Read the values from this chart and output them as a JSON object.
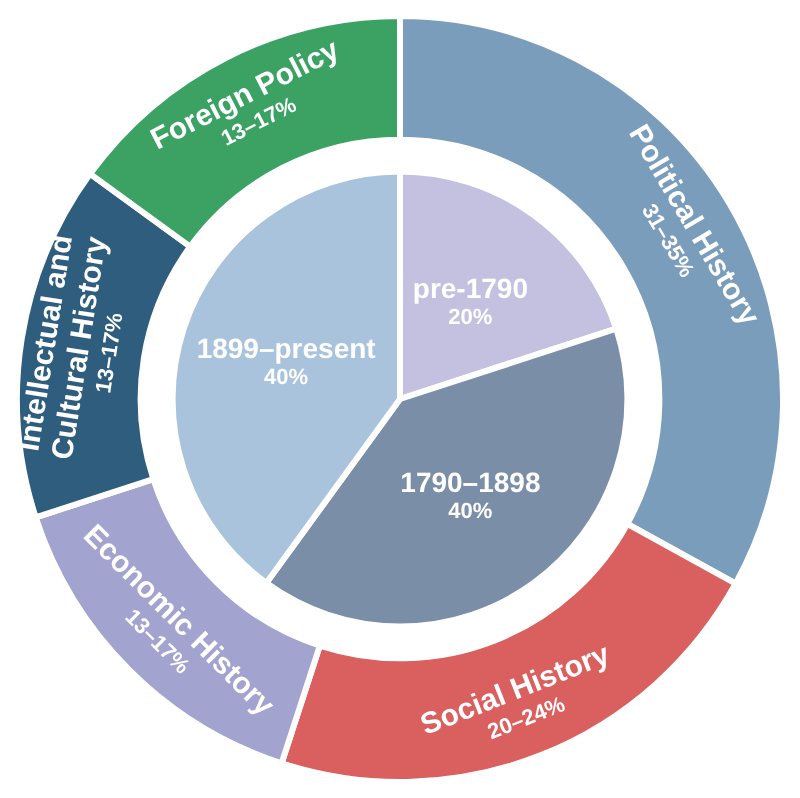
{
  "chart_data": [
    {
      "type": "pie",
      "categories": [
        "pre-1790",
        "1790–1898",
        "1899–present"
      ],
      "values": [
        20,
        40,
        40
      ],
      "value_labels": [
        "20%",
        "40%",
        "40%"
      ],
      "colors": [
        "#c4c0e0",
        "#7b8ea8",
        "#a9c3dc"
      ],
      "legend": false
    },
    {
      "type": "donut",
      "categories": [
        "Political History",
        "Social History",
        "Economic History",
        "Intellectual and Cultural History",
        "Foreign Policy"
      ],
      "values": [
        33,
        22,
        15,
        15,
        15
      ],
      "annotations": [
        "31–35%",
        "20–24%",
        "13–17%",
        "13–17%",
        "13–17%"
      ],
      "colors": [
        "#7b9dbc",
        "#d9605f",
        "#a3a3cf",
        "#2e5d7d",
        "#3ba264"
      ],
      "legend": false
    }
  ]
}
